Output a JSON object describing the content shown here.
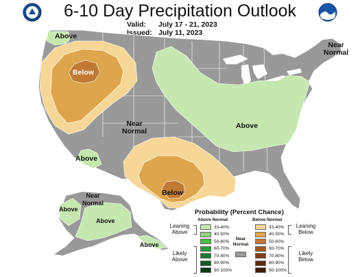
{
  "title": "6-10 Day Precipitation Outlook",
  "valid_label": "Valid:",
  "valid_value": "July 17 - 21, 2023",
  "issued_label": "Issued:",
  "issued_value": "July 11, 2023",
  "map_labels": {
    "nw_above": "Above",
    "west_below": "Below",
    "near_normal_center": "Near\nNormal",
    "east_above": "Above",
    "ne_near_normal": "Near\nNormal",
    "sw_above": "Above",
    "tx_below": "Below",
    "ak_near_normal": "Near\nNormal",
    "ak_above_west": "Above",
    "ak_above_south": "Above",
    "ak_above_panhandle": "Above"
  },
  "legend": {
    "title": "Probability (Percent Chance)",
    "above_head": "Above Normal",
    "below_head": "Below Normal",
    "near_label": "Near\nNormal",
    "leaning_above": "Leaning\nAbove",
    "likely_above": "Likely\nAbove",
    "leaning_below": "Leaning\nBelow",
    "likely_below": "Likely\nBelow",
    "above_rows": [
      {
        "label": "33-40%",
        "color": "#c6e8b0"
      },
      {
        "label": "40-50%",
        "color": "#93d383"
      },
      {
        "label": "50-60%",
        "color": "#4fb84a"
      },
      {
        "label": "60-70%",
        "color": "#2a9a3a"
      },
      {
        "label": "70-80%",
        "color": "#1b7a32"
      },
      {
        "label": "80-90%",
        "color": "#125b26"
      },
      {
        "label": "90-100%",
        "color": "#0a3d18"
      }
    ],
    "below_rows": [
      {
        "label": "33-40%",
        "color": "#f6d798"
      },
      {
        "label": "40-50%",
        "color": "#dfa54c"
      },
      {
        "label": "50-60%",
        "color": "#c17a35"
      },
      {
        "label": "60-70%",
        "color": "#a35a22"
      },
      {
        "label": "70-80%",
        "color": "#7e3f16"
      },
      {
        "label": "80-90%",
        "color": "#5e2c0f"
      },
      {
        "label": "90-100%",
        "color": "#3e1b09"
      }
    ],
    "near_color": "#9a9a9a"
  },
  "colors": {
    "near_normal": "#999999",
    "water": "#ffffff",
    "outline": "#ffffff"
  }
}
